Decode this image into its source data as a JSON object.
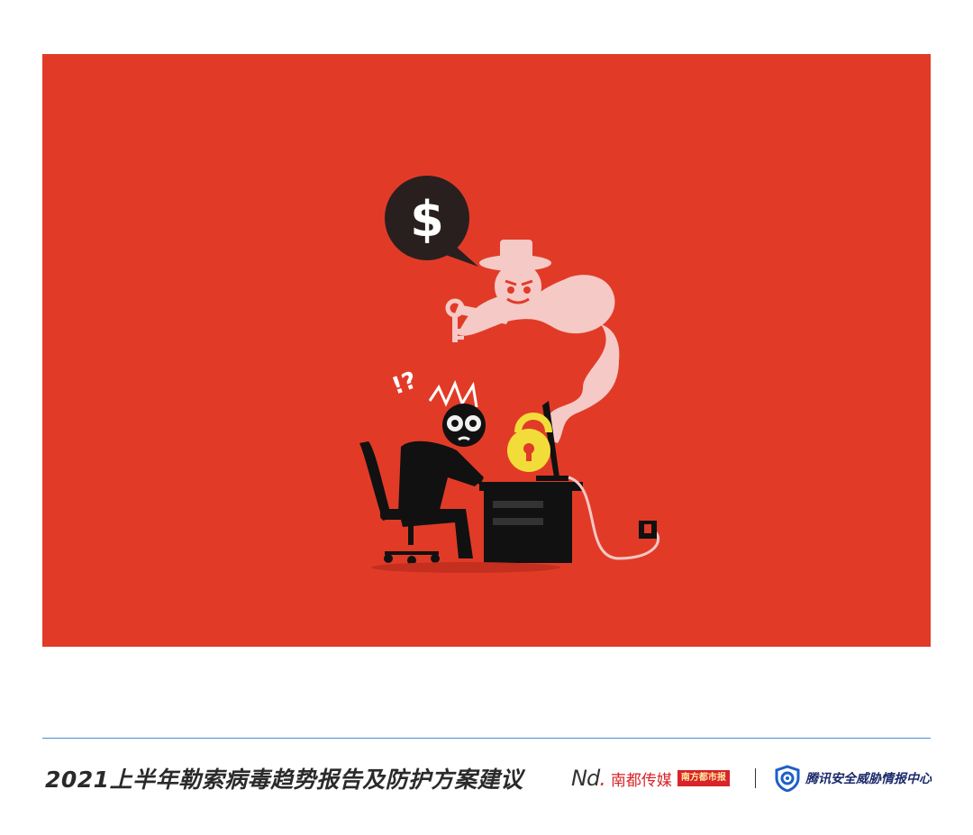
{
  "footer": {
    "title": "2021上半年勒索病毒趋势报告及防护方案建议"
  },
  "brands": {
    "nd_mark": "Nd",
    "nd_name": "南都传媒",
    "nd_badge": "南方都市报",
    "tencent_name": "腾讯安全威胁情报中心"
  },
  "illustration": {
    "dollar_symbol": "$",
    "exclaim_symbol": "!?",
    "background_color": "#e13b28"
  },
  "icons": {
    "hero": "ransomware-illustration",
    "shield": "shield-icon"
  }
}
